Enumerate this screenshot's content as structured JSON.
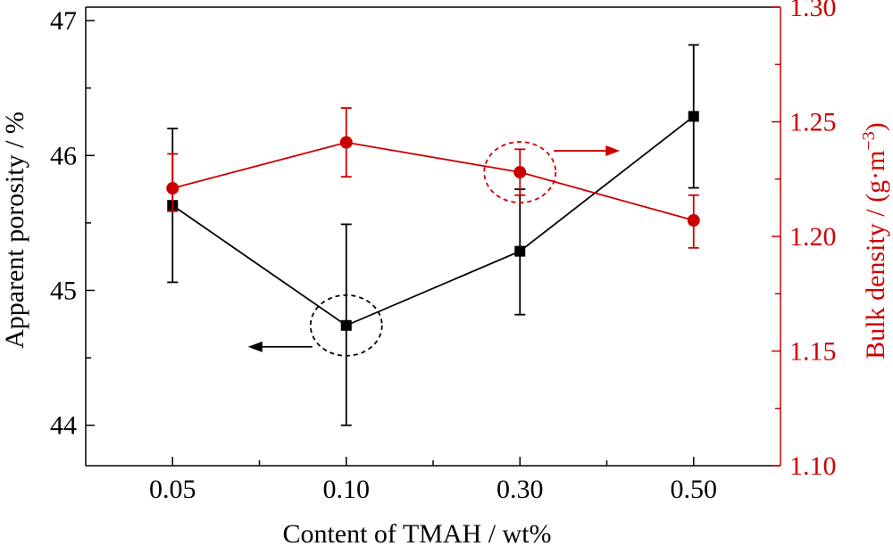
{
  "chart_data": {
    "type": "line",
    "xlabel": "Content of TMAH / wt%",
    "categories": [
      "0.05",
      "0.10",
      "0.30",
      "0.50"
    ],
    "y_left": {
      "label": "Apparent porosity / %",
      "ylim": [
        43.7,
        47.1
      ],
      "ticks": [
        "44",
        "45",
        "46",
        "47"
      ],
      "color": "#000000"
    },
    "y_right": {
      "label_main": "Bulk density / (g·m",
      "label_sup": "−3",
      "label_end": ")",
      "ylim": [
        1.1,
        1.3
      ],
      "ticks": [
        "1.10",
        "1.15",
        "1.20",
        "1.25",
        "1.30"
      ],
      "color": "#cc0000"
    },
    "series": [
      {
        "axis": "left",
        "marker": "square",
        "color": "#000000",
        "values": [
          45.63,
          44.74,
          45.29,
          46.29
        ],
        "err_low": [
          45.06,
          44.0,
          44.82,
          45.76
        ],
        "err_high": [
          46.2,
          45.49,
          45.75,
          46.82
        ]
      },
      {
        "axis": "right",
        "marker": "circle",
        "color": "#cc0000",
        "values": [
          1.221,
          1.241,
          1.228,
          1.207
        ],
        "err_low": [
          1.211,
          1.226,
          1.218,
          1.195
        ],
        "err_high": [
          1.236,
          1.256,
          1.238,
          1.218
        ]
      }
    ],
    "annotations": [
      {
        "type": "dashed-ellipse-arrow",
        "series_index": 0,
        "point_index": 1,
        "arrow_direction": "left"
      },
      {
        "type": "dashed-ellipse-arrow",
        "series_index": 1,
        "point_index": 2,
        "arrow_direction": "right"
      }
    ],
    "grid": false,
    "legend": "none"
  }
}
